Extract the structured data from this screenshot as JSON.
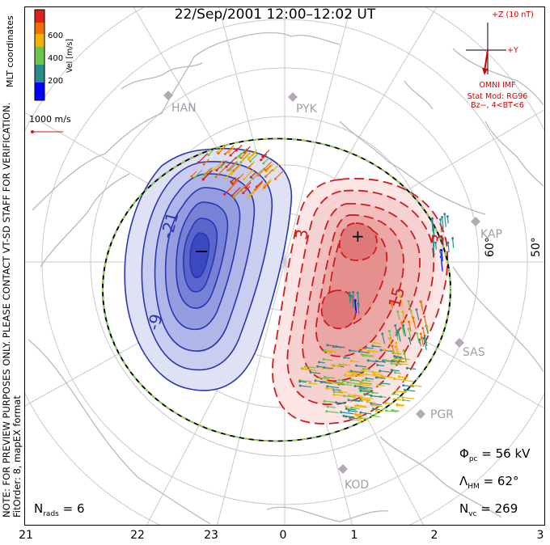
{
  "title": "22/Sep/2001 12:00–12:02 UT",
  "side_notes": {
    "line1": "NOTE: FOR PREVIEW PURPOSES ONLY. PLEASE CONTACT VT-SD STAFF FOR VERIFICATION.",
    "line2": "FitOrder: 8, mapEX format",
    "coords": "MLT coordinates"
  },
  "colorbar": {
    "label": "Vel [m/s]",
    "ticks": [
      "600",
      "400",
      "200"
    ],
    "colors": [
      "#0000ff",
      "#2a8c8c",
      "#6fc24a",
      "#f0b400",
      "#f56d00",
      "#dd2020"
    ]
  },
  "reference_vector": {
    "label": "1000 m/s"
  },
  "imf": {
    "bz_label": "+Z (10 nT)",
    "by_label": "+Y",
    "source": "OMNI IMF",
    "model": "Stat Mod: RG96",
    "condition": "Bz−, 4<BT<6"
  },
  "stats": {
    "phi_pc_label": "Φ",
    "phi_pc_sub": "pc",
    "phi_pc_value": "= 56 kV",
    "lambda_hm_label": "Λ",
    "lambda_hm_sub": "HM",
    "lambda_hm_value": "= 62°",
    "n_vc_label": "N",
    "n_vc_sub": "vc",
    "n_vc_value": "= 269",
    "n_rads_label": "N",
    "n_rads_sub": "rads",
    "n_rads_value": "= 6"
  },
  "mlt_ticks": [
    "21",
    "22",
    "23",
    "0",
    "1",
    "2",
    "3"
  ],
  "latitude_labels": [
    "60°",
    "50°"
  ],
  "stations": [
    "HAN",
    "PYK",
    "KAP",
    "SAS",
    "PGR",
    "KOD"
  ],
  "contour_labels": {
    "negative": [
      "-21",
      "-9"
    ],
    "positive": [
      "3",
      "15",
      "3",
      "3"
    ]
  },
  "potential_markers": {
    "min": "−",
    "max": "+"
  },
  "colors": {
    "negative_cell": "#2a37b0",
    "positive_cell": "#d11b1b",
    "heppner_boundary": "#8ed15a",
    "geography": "#b9b9b9"
  }
}
